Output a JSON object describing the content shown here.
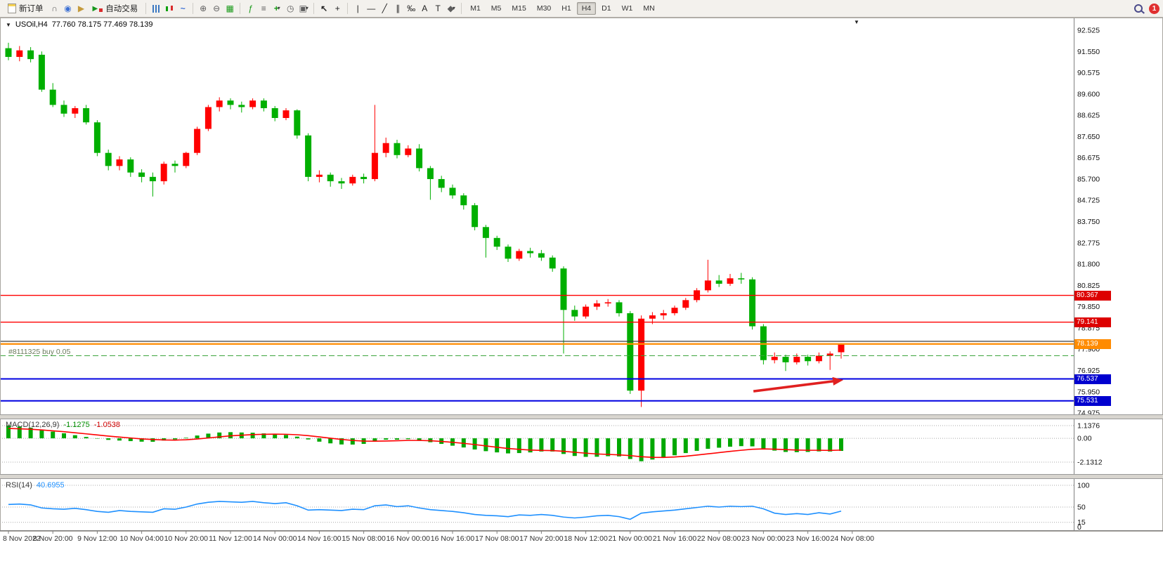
{
  "window": {
    "symbol_title": "USOil,H4",
    "ohlc_title": "77.760 78.175 77.469 78.139"
  },
  "toolbar": {
    "new_order_label": "新订单",
    "auto_trading_label": "自动交易",
    "timeframes": [
      "M1",
      "M5",
      "M15",
      "M30",
      "H1",
      "H4",
      "D1",
      "W1",
      "MN"
    ],
    "active_timeframe": "H4",
    "notification_count": "1"
  },
  "colors": {
    "up": "#ff0000",
    "down": "#00af00",
    "background": "#ffffff",
    "axis_text": "#111111"
  },
  "chart_data": [
    {
      "type": "candlestick",
      "symbol": "USOil",
      "timeframe": "H4",
      "y_ticks": [
        "92.525",
        "91.550",
        "90.575",
        "89.600",
        "88.625",
        "87.650",
        "86.675",
        "85.700",
        "84.725",
        "83.750",
        "82.775",
        "81.800",
        "80.825",
        "79.850",
        "78.875",
        "77.900",
        "76.925",
        "75.950",
        "74.975"
      ],
      "x_labels": [
        "8 Nov 2022",
        "8 Nov 20:00",
        "9 Nov 12:00",
        "10 Nov 04:00",
        "10 Nov 20:00",
        "11 Nov 12:00",
        "14 Nov 00:00",
        "14 Nov 16:00",
        "15 Nov 08:00",
        "16 Nov 00:00",
        "16 Nov 16:00",
        "17 Nov 08:00",
        "17 Nov 20:00",
        "18 Nov 12:00",
        "21 Nov 00:00",
        "21 Nov 16:00",
        "22 Nov 08:00",
        "23 Nov 00:00",
        "23 Nov 16:00",
        "24 Nov 08:00"
      ],
      "levels": [
        {
          "price": 80.367,
          "color": "#ff0000",
          "width": 1.4,
          "style": "solid",
          "badge": "80.367",
          "badge_color": "#dd0000"
        },
        {
          "price": 79.141,
          "color": "#ff0000",
          "width": 1.4,
          "style": "solid",
          "badge": "79.141",
          "badge_color": "#dd0000"
        },
        {
          "price": 78.26,
          "color": "#3c3c3c",
          "width": 1.2,
          "style": "solid",
          "badge": null,
          "badge_color": null
        },
        {
          "price": 78.139,
          "color": "#ff8b00",
          "width": 2.2,
          "style": "solid",
          "badge": "78.139",
          "badge_color": "#ff8b00"
        },
        {
          "price": 76.537,
          "color": "#0000e1",
          "width": 2,
          "style": "solid",
          "badge": "76.537",
          "badge_color": "#0000cf"
        },
        {
          "price": 75.531,
          "color": "#0000e1",
          "width": 2,
          "style": "solid",
          "badge": "75.531",
          "badge_color": "#0000cf"
        }
      ],
      "order_line": {
        "label": "#8111325 buy 0.05",
        "price": 77.6,
        "color": "#3da53d",
        "style": "dash"
      },
      "arrow": {
        "from_bar": 67.1,
        "from_price": 75.97,
        "to_bar": 75.2,
        "to_price": 76.49,
        "color": "#e02020"
      },
      "ohlc": [
        [
          91.7,
          91.95,
          91.15,
          91.3
        ],
        [
          91.3,
          91.8,
          91.1,
          91.6
        ],
        [
          91.6,
          91.75,
          91.05,
          91.2
        ],
        [
          91.4,
          91.55,
          89.7,
          89.8
        ],
        [
          89.8,
          90.1,
          89.0,
          89.1
        ],
        [
          89.1,
          89.3,
          88.55,
          88.7
        ],
        [
          88.7,
          89.05,
          88.5,
          88.95
        ],
        [
          88.95,
          89.1,
          88.2,
          88.3
        ],
        [
          88.3,
          88.4,
          86.75,
          86.9
        ],
        [
          86.9,
          87.05,
          86.1,
          86.3
        ],
        [
          86.3,
          86.75,
          86.1,
          86.6
        ],
        [
          86.6,
          86.7,
          85.8,
          86.0
        ],
        [
          86.0,
          86.15,
          85.55,
          85.8
        ],
        [
          85.8,
          86.0,
          84.9,
          85.6
        ],
        [
          85.6,
          86.5,
          85.45,
          86.4
        ],
        [
          86.4,
          86.55,
          86.0,
          86.3
        ],
        [
          86.3,
          86.95,
          86.2,
          86.9
        ],
        [
          86.9,
          88.1,
          86.8,
          88.0
        ],
        [
          88.0,
          89.1,
          87.9,
          89.0
        ],
        [
          89.0,
          89.45,
          88.8,
          89.3
        ],
        [
          89.3,
          89.4,
          88.9,
          89.1
        ],
        [
          89.1,
          89.25,
          88.75,
          89.0
        ],
        [
          89.0,
          89.4,
          88.9,
          89.3
        ],
        [
          89.3,
          89.4,
          88.8,
          88.95
        ],
        [
          88.95,
          89.05,
          88.35,
          88.5
        ],
        [
          88.5,
          88.95,
          88.4,
          88.85
        ],
        [
          88.85,
          88.9,
          87.55,
          87.7
        ],
        [
          87.7,
          87.8,
          85.6,
          85.8
        ],
        [
          85.8,
          86.1,
          85.55,
          85.9
        ],
        [
          85.9,
          86.0,
          85.35,
          85.6
        ],
        [
          85.6,
          85.75,
          85.25,
          85.5
        ],
        [
          85.5,
          85.9,
          85.4,
          85.8
        ],
        [
          85.8,
          85.95,
          85.5,
          85.7
        ],
        [
          85.7,
          89.1,
          85.6,
          86.9
        ],
        [
          86.9,
          87.6,
          86.7,
          87.35
        ],
        [
          87.35,
          87.5,
          86.65,
          86.8
        ],
        [
          86.8,
          87.25,
          86.7,
          87.1
        ],
        [
          87.1,
          87.3,
          86.05,
          86.2
        ],
        [
          86.2,
          86.3,
          84.75,
          85.7
        ],
        [
          85.7,
          85.85,
          85.1,
          85.3
        ],
        [
          85.3,
          85.45,
          84.8,
          84.95
        ],
        [
          84.95,
          85.05,
          84.3,
          84.5
        ],
        [
          84.5,
          84.6,
          83.35,
          83.5
        ],
        [
          83.5,
          83.6,
          82.1,
          83.0
        ],
        [
          83.0,
          83.1,
          82.45,
          82.6
        ],
        [
          82.6,
          82.7,
          81.9,
          82.05
        ],
        [
          82.05,
          82.5,
          81.95,
          82.4
        ],
        [
          82.4,
          82.55,
          82.1,
          82.3
        ],
        [
          82.3,
          82.45,
          81.95,
          82.1
        ],
        [
          82.1,
          82.2,
          81.45,
          81.6
        ],
        [
          81.6,
          81.7,
          77.7,
          79.7
        ],
        [
          79.7,
          79.9,
          79.2,
          79.4
        ],
        [
          79.4,
          79.95,
          79.3,
          79.85
        ],
        [
          79.85,
          80.15,
          79.7,
          80.0
        ],
        [
          80.0,
          80.2,
          79.85,
          80.05
        ],
        [
          80.05,
          80.15,
          79.4,
          79.55
        ],
        [
          79.55,
          79.65,
          75.85,
          76.0
        ],
        [
          76.0,
          79.45,
          75.25,
          79.3
        ],
        [
          79.3,
          79.6,
          79.05,
          79.45
        ],
        [
          79.45,
          79.7,
          79.25,
          79.55
        ],
        [
          79.55,
          79.9,
          79.45,
          79.8
        ],
        [
          79.8,
          80.25,
          79.7,
          80.15
        ],
        [
          80.15,
          80.7,
          80.05,
          80.6
        ],
        [
          80.6,
          82.0,
          80.5,
          81.05
        ],
        [
          81.05,
          81.3,
          80.75,
          80.9
        ],
        [
          80.9,
          81.35,
          80.8,
          81.15
        ],
        [
          81.15,
          81.4,
          80.9,
          81.1
        ],
        [
          81.1,
          81.2,
          78.8,
          78.95
        ],
        [
          78.95,
          79.05,
          77.2,
          77.4
        ],
        [
          77.4,
          77.75,
          77.25,
          77.55
        ],
        [
          77.55,
          77.65,
          76.9,
          77.3
        ],
        [
          77.3,
          77.7,
          77.2,
          77.55
        ],
        [
          77.55,
          77.65,
          77.15,
          77.35
        ],
        [
          77.35,
          77.75,
          77.25,
          77.6
        ],
        [
          77.6,
          77.8,
          76.95,
          77.7
        ],
        [
          77.76,
          78.175,
          77.469,
          78.139
        ]
      ]
    },
    {
      "type": "bar",
      "name": "MACD(12,26,9)",
      "current_values": {
        "macd": "-1.1275",
        "signal": "-1.0538"
      },
      "max": 1.1376,
      "min": -2.1312,
      "y_ticks": [
        "1.1376",
        "0.00",
        "-2.1312"
      ],
      "hist_color": "#00a800",
      "signal_color": "#ff0000",
      "values": [
        1.15,
        1.05,
        0.95,
        0.78,
        0.6,
        0.45,
        0.28,
        0.12,
        -0.03,
        -0.14,
        -0.2,
        -0.25,
        -0.3,
        -0.31,
        -0.2,
        -0.1,
        0.05,
        0.25,
        0.42,
        0.52,
        0.55,
        0.52,
        0.5,
        0.44,
        0.36,
        0.3,
        0.15,
        -0.1,
        -0.3,
        -0.45,
        -0.55,
        -0.56,
        -0.5,
        -0.28,
        -0.12,
        -0.12,
        -0.08,
        -0.18,
        -0.35,
        -0.5,
        -0.66,
        -0.82,
        -1.0,
        -1.15,
        -1.26,
        -1.35,
        -1.32,
        -1.26,
        -1.18,
        -1.18,
        -1.4,
        -1.58,
        -1.66,
        -1.65,
        -1.6,
        -1.62,
        -1.85,
        -2.05,
        -1.9,
        -1.72,
        -1.52,
        -1.32,
        -1.12,
        -0.94,
        -0.84,
        -0.75,
        -0.7,
        -0.72,
        -0.9,
        -1.1,
        -1.22,
        -1.24,
        -1.22,
        -1.17,
        -1.18,
        -1.1275
      ],
      "signal": [
        0.88,
        0.85,
        0.81,
        0.75,
        0.67,
        0.59,
        0.5,
        0.4,
        0.3,
        0.2,
        0.11,
        0.03,
        -0.05,
        -0.11,
        -0.15,
        -0.16,
        -0.13,
        -0.06,
        0.03,
        0.13,
        0.22,
        0.28,
        0.33,
        0.36,
        0.37,
        0.36,
        0.32,
        0.24,
        0.13,
        0.01,
        -0.1,
        -0.19,
        -0.25,
        -0.26,
        -0.24,
        -0.22,
        -0.19,
        -0.19,
        -0.22,
        -0.28,
        -0.36,
        -0.45,
        -0.56,
        -0.68,
        -0.8,
        -0.91,
        -0.99,
        -1.05,
        -1.08,
        -1.1,
        -1.16,
        -1.25,
        -1.33,
        -1.4,
        -1.44,
        -1.48,
        -1.55,
        -1.65,
        -1.7,
        -1.71,
        -1.67,
        -1.6,
        -1.5,
        -1.39,
        -1.28,
        -1.17,
        -1.07,
        -0.98,
        -0.95,
        -0.97,
        -1.01,
        -1.05,
        -1.07,
        -1.07,
        -1.08,
        -1.0538
      ]
    },
    {
      "type": "line",
      "name": "RSI(14)",
      "current": "40.6955",
      "line_color": "#1e90ff",
      "range": [
        0,
        100
      ],
      "levels": [
        100,
        50,
        15
      ],
      "y_ticks": [
        "100",
        "50",
        "15",
        "0"
      ],
      "values": [
        56,
        57,
        55,
        48,
        46,
        45,
        47,
        44,
        40,
        38,
        42,
        40,
        39,
        38,
        46,
        45,
        50,
        57,
        61,
        63,
        62,
        61,
        63,
        60,
        58,
        60,
        53,
        43,
        44,
        43,
        42,
        45,
        44,
        53,
        55,
        51,
        53,
        48,
        44,
        42,
        40,
        37,
        33,
        31,
        30,
        28,
        32,
        31,
        33,
        31,
        27,
        25,
        27,
        30,
        31,
        28,
        22,
        36,
        39,
        41,
        43,
        46,
        49,
        52,
        50,
        52,
        51,
        52,
        46,
        36,
        33,
        35,
        33,
        37,
        34,
        40.6955
      ]
    }
  ]
}
